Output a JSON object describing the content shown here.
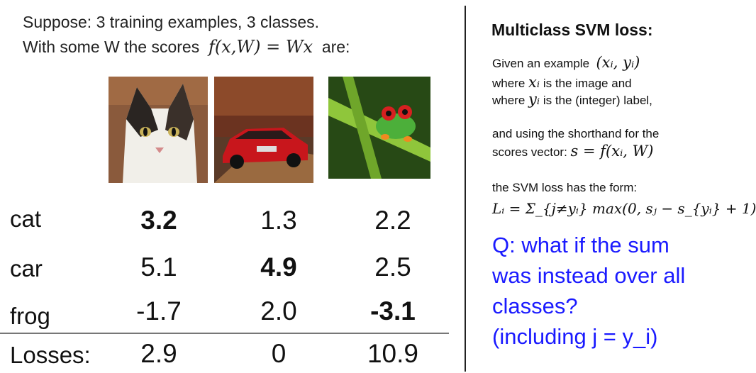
{
  "intro": {
    "line1": "Suppose: 3 training examples, 3 classes.",
    "line2_prefix": "With some W the scores",
    "line2_math": "f(x,W) = Wx",
    "line2_suffix": "are:"
  },
  "images": [
    {
      "subject": "cat"
    },
    {
      "subject": "car"
    },
    {
      "subject": "frog"
    }
  ],
  "table": {
    "rows": [
      {
        "label": "cat",
        "values": [
          "3.2",
          "1.3",
          "2.2"
        ]
      },
      {
        "label": "car",
        "values": [
          "5.1",
          "4.9",
          "2.5"
        ]
      },
      {
        "label": "frog",
        "values": [
          "-1.7",
          "2.0",
          "-3.1"
        ]
      }
    ],
    "losses_label": "Losses:",
    "losses": [
      "2.9",
      "0",
      "10.9"
    ]
  },
  "right": {
    "title": "Multiclass SVM loss:",
    "given_prefix": "Given an example",
    "given_math": "(xᵢ, yᵢ)",
    "where1_prefix": "where",
    "where1_math": "xᵢ",
    "where1_suffix": "is the image and",
    "where2_prefix": "where",
    "where2_math": "yᵢ",
    "where2_suffix": "is the (integer) label,",
    "shorthand1": "and using the shorthand for the",
    "shorthand2_prefix": "scores vector:",
    "shorthand2_math": "s = f(xᵢ, W)",
    "form_line": "the SVM loss has the form:",
    "formula": "Lᵢ = Σ_{j≠yᵢ} max(0, sⱼ − s_{yᵢ} + 1)",
    "question": [
      "Q: what if the sum",
      "was instead over all",
      "classes?",
      "(including j = y_i)"
    ],
    "question_color": "#1a1aff"
  }
}
